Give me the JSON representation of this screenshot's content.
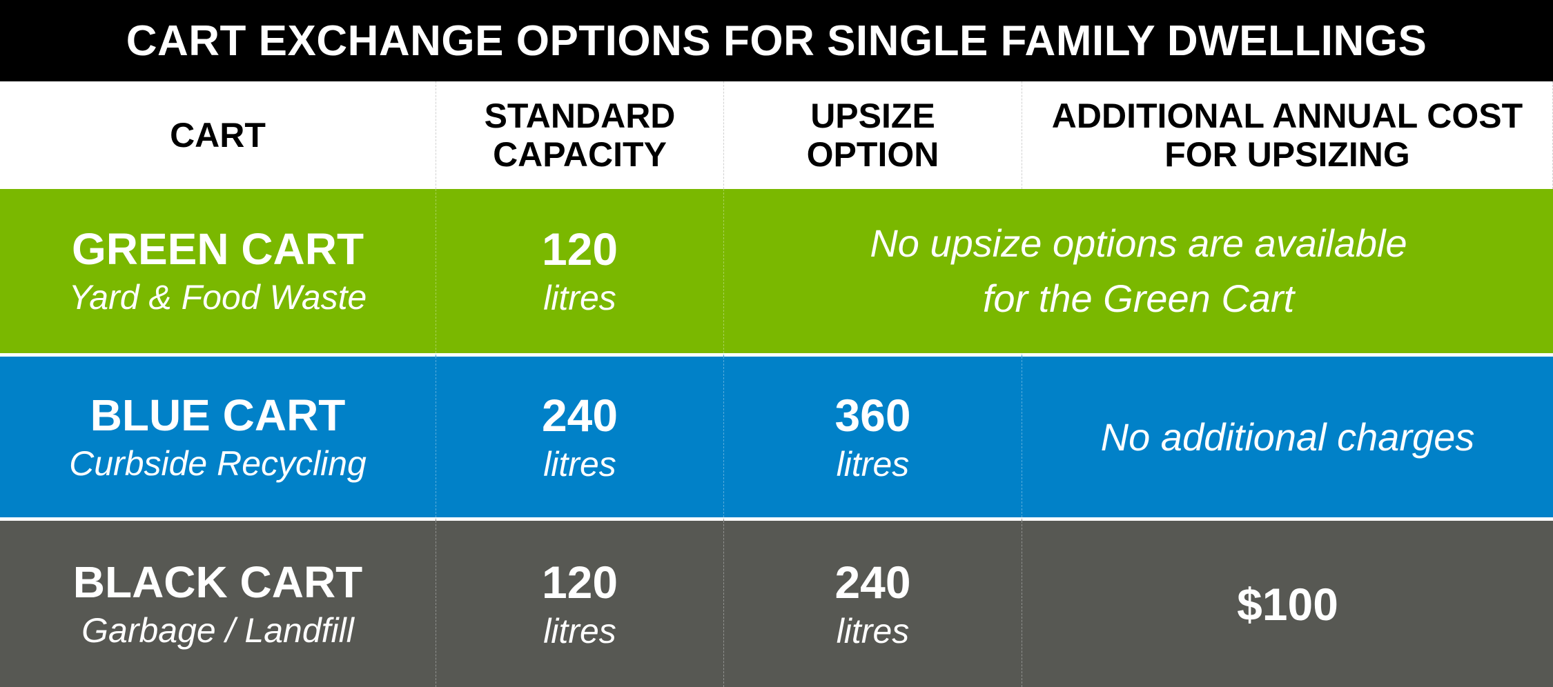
{
  "title": "CART EXCHANGE OPTIONS FOR SINGLE FAMILY DWELLINGS",
  "colors": {
    "title_bg": "#000000",
    "green": "#7ab800",
    "blue": "#0181c8",
    "black": "#575853"
  },
  "headers": {
    "cart": "CART",
    "standard_l1": "STANDARD",
    "standard_l2": "CAPACITY",
    "upsize_l1": "UPSIZE",
    "upsize_l2": "OPTION",
    "cost_l1": "ADDITIONAL ANNUAL COST",
    "cost_l2": "FOR UPSIZING"
  },
  "rows": {
    "green": {
      "name": "GREEN CART",
      "desc": "Yard & Food Waste",
      "standard": "120",
      "standard_unit": "litres",
      "note_l1": "No upsize options are available",
      "note_l2": "for the Green Cart"
    },
    "blue": {
      "name": "BLUE CART",
      "desc": "Curbside Recycling",
      "standard": "240",
      "standard_unit": "litres",
      "upsize": "360",
      "upsize_unit": "litres",
      "cost": "No additional charges"
    },
    "black": {
      "name": "BLACK CART",
      "desc": "Garbage / Landfill",
      "standard": "120",
      "standard_unit": "litres",
      "upsize": "240",
      "upsize_unit": "litres",
      "cost": "$100"
    }
  }
}
